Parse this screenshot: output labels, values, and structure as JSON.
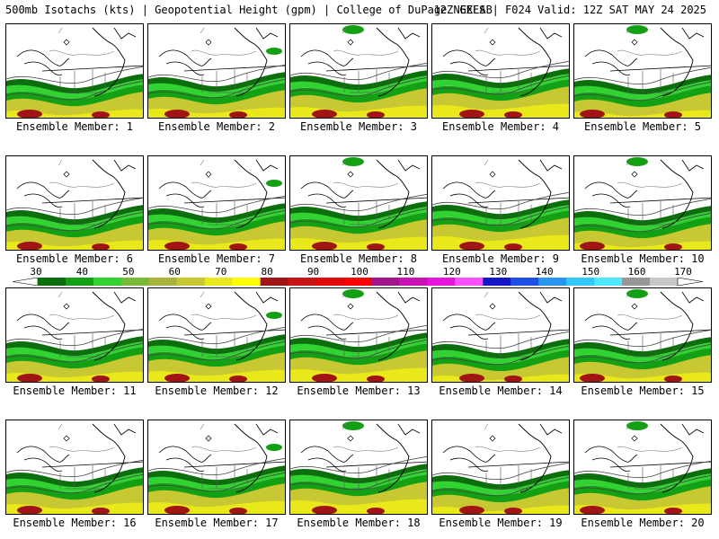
{
  "header": {
    "title": "500mb Isotachs (kts) | Geopotential Height (gpm) | College of DuPage NEXLAB",
    "run": "12Z GEFS | F024 Valid: 12Z SAT MAY 24 2025"
  },
  "colorbar": {
    "labels": [
      "30",
      "40",
      "50",
      "60",
      "70",
      "80",
      "90",
      "100",
      "110",
      "120",
      "130",
      "140",
      "150",
      "160",
      "170"
    ],
    "colors": [
      "#0c6e0c",
      "#14a014",
      "#32d232",
      "#7aba3a",
      "#a8b43c",
      "#c8c832",
      "#e8e81a",
      "#ffff00",
      "#a01414",
      "#c81414",
      "#e00a0a",
      "#ff0000",
      "#a0148c",
      "#c814b4",
      "#e614dc",
      "#ff50ff",
      "#1414c8",
      "#1e50e6",
      "#2896f0",
      "#32c8fa",
      "#50e6ff",
      "#969696",
      "#c8c8c8"
    ]
  },
  "members": [
    {
      "label": "Ensemble Member: 1"
    },
    {
      "label": "Ensemble Member: 2"
    },
    {
      "label": "Ensemble Member: 3"
    },
    {
      "label": "Ensemble Member: 4"
    },
    {
      "label": "Ensemble Member: 5"
    },
    {
      "label": "Ensemble Member: 6"
    },
    {
      "label": "Ensemble Member: 7"
    },
    {
      "label": "Ensemble Member: 8"
    },
    {
      "label": "Ensemble Member: 9"
    },
    {
      "label": "Ensemble Member: 10"
    },
    {
      "label": "Ensemble Member: 11"
    },
    {
      "label": "Ensemble Member: 12"
    },
    {
      "label": "Ensemble Member: 13"
    },
    {
      "label": "Ensemble Member: 14"
    },
    {
      "label": "Ensemble Member: 15"
    },
    {
      "label": "Ensemble Member: 16"
    },
    {
      "label": "Ensemble Member: 17"
    },
    {
      "label": "Ensemble Member: 18"
    },
    {
      "label": "Ensemble Member: 19"
    },
    {
      "label": "Ensemble Member: 20"
    }
  ]
}
